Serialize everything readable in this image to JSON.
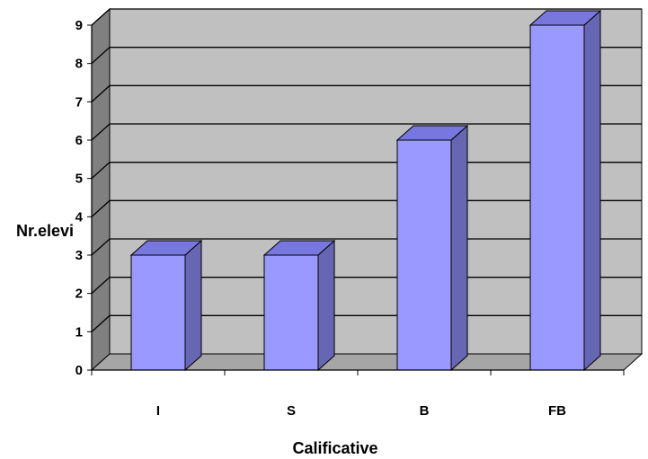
{
  "chart_data": {
    "type": "bar",
    "categories": [
      "I",
      "S",
      "B",
      "FB"
    ],
    "values": [
      3,
      3,
      6,
      9
    ],
    "title": "",
    "xlabel": "Calificative",
    "ylabel": "Nr.elevi",
    "ylim": [
      0,
      9
    ],
    "yticks": [
      0,
      1,
      2,
      3,
      4,
      5,
      6,
      7,
      8,
      9
    ],
    "grid": true,
    "style": "3d-column",
    "colors": {
      "bar_front": "#9999ff",
      "bar_top": "#7777dd",
      "bar_side": "#6666b3",
      "wall": "#c0c0c0",
      "wall_side": "#808080",
      "floor": "#a6a6a6",
      "gridline": "#000000"
    }
  }
}
